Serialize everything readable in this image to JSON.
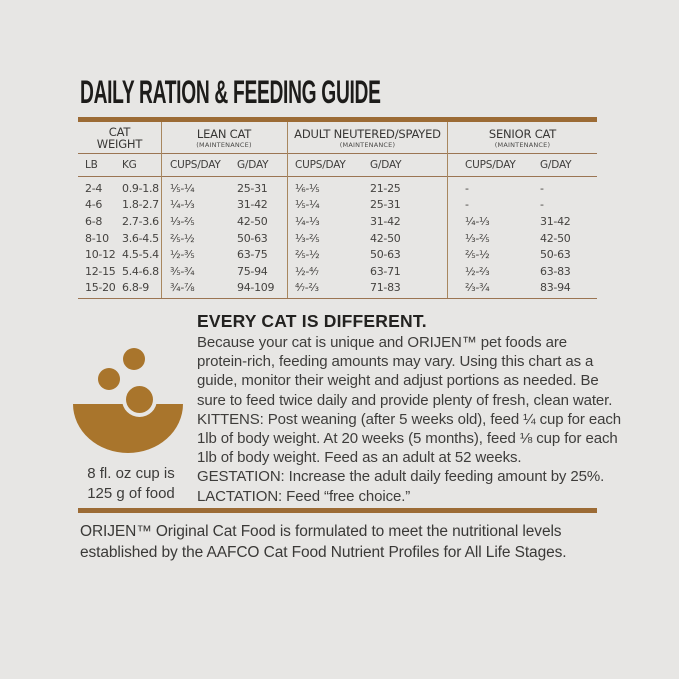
{
  "title": "DAILY RATION & FEEDING GUIDE",
  "table": {
    "group_headers": [
      {
        "title": [
          "CAT",
          "WEIGHT"
        ],
        "subtitle": ""
      },
      {
        "title": [
          "LEAN CAT"
        ],
        "subtitle": "(MAINTENANCE)"
      },
      {
        "title": [
          "ADULT NEUTERED/SPAYED"
        ],
        "subtitle": "(MAINTENANCE)"
      },
      {
        "title": [
          "SENIOR CAT"
        ],
        "subtitle": "(MAINTENANCE)"
      }
    ],
    "col_headers": [
      "LB",
      "KG",
      "CUPS/DAY",
      "G/DAY",
      "CUPS/DAY",
      "G/DAY",
      "CUPS/DAY",
      "G/DAY"
    ],
    "rows": [
      [
        "2-4",
        "0.9-1.8",
        "⅕-¼",
        "25-31",
        "⅙-⅕",
        "21-25",
        "-",
        "-"
      ],
      [
        "4-6",
        "1.8-2.7",
        "¼-⅓",
        "31-42",
        "⅕-¼",
        "25-31",
        "-",
        "-"
      ],
      [
        "6-8",
        "2.7-3.6",
        "⅓-⅖",
        "42-50",
        "¼-⅓",
        "31-42",
        "¼-⅓",
        "31-42"
      ],
      [
        "8-10",
        "3.6-4.5",
        "⅖-½",
        "50-63",
        "⅓-⅖",
        "42-50",
        "⅓-⅖",
        "42-50"
      ],
      [
        "10-12",
        "4.5-5.4",
        "½-⅗",
        "63-75",
        "⅖-½",
        "50-63",
        "⅖-½",
        "50-63"
      ],
      [
        "12-15",
        "5.4-6.8",
        "⅗-¾",
        "75-94",
        "½-⁴⁄₇",
        "63-71",
        "½-⅔",
        "63-83"
      ],
      [
        "15-20",
        "6.8-9",
        "¾-⅞",
        "94-109",
        "⁴⁄₇-⅔",
        "71-83",
        "⅔-¾",
        "83-94"
      ]
    ]
  },
  "cup_note": {
    "lines": [
      "8 fl. oz cup is",
      "125 g of food"
    ]
  },
  "info": {
    "heading": "EVERY CAT IS DIFFERENT.",
    "lines": [
      "Because your cat is unique and ORIJEN™ pet foods are",
      "protein-rich, feeding amounts may vary. Using this chart as a",
      "guide, monitor their weight and adjust portions as needed. Be",
      "sure to feed twice daily and provide plenty of fresh, clean water.",
      "KITTENS: Post weaning (after 5 weeks old), feed ¼ cup for each",
      "1lb of body weight. At 20 weeks (5 months), feed ⅛ cup for each",
      "1lb of body weight. Feed as an adult at 52 weeks.",
      "GESTATION: Increase the adult daily feeding amount by 25%.",
      "LACTATION: Feed “free choice.”"
    ]
  },
  "footer": {
    "lines": [
      "ORIJEN™ Original Cat Food is formulated to meet the nutritional levels",
      "established by the AAFCO Cat Food Nutrient Profiles for All Life Stages."
    ]
  },
  "icons": {
    "bowl": "bowl-with-kibble-icon"
  },
  "colors": {
    "background": "#e7e6e4",
    "accent-brown": "#9c6b35",
    "line-brown": "#9b7553",
    "divider-brown": "#a8875f",
    "bowl-brown": "#a9752c"
  }
}
